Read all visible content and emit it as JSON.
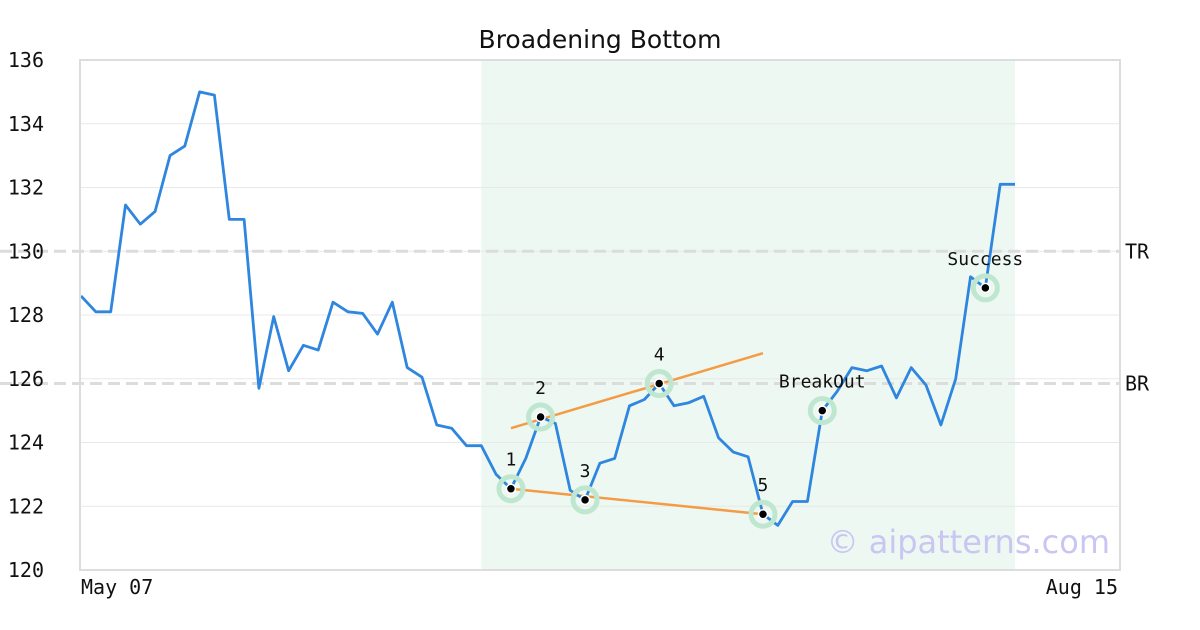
{
  "chart_data": {
    "type": "line",
    "title": "Broadening Bottom",
    "ylim": [
      120,
      136
    ],
    "yticks": [
      120,
      122,
      124,
      126,
      128,
      130,
      132,
      134,
      136
    ],
    "xtick_labels": [
      "May 07",
      "Aug 15"
    ],
    "grid": true,
    "series": [
      {
        "values": [
          128.6,
          128.1,
          128.1,
          131.45,
          130.85,
          131.25,
          133.0,
          133.3,
          135.0,
          134.9,
          131.0,
          131.0,
          125.7,
          127.95,
          126.25,
          127.05,
          126.9,
          128.4,
          128.1,
          128.05,
          127.4,
          128.4,
          126.35,
          126.05,
          124.55,
          124.45,
          123.9,
          123.9,
          123.0,
          122.55,
          123.5,
          124.8,
          124.6,
          122.5,
          122.2,
          123.35,
          123.5,
          125.15,
          125.35,
          125.85,
          125.15,
          125.25,
          125.45,
          124.15,
          123.7,
          123.55,
          121.75,
          121.4,
          122.15,
          122.15,
          125.0,
          125.6,
          126.35,
          126.25,
          126.4,
          125.4,
          126.35,
          125.8,
          124.55,
          126.0,
          129.2,
          128.85,
          132.1,
          132.1
        ],
        "color": "#2e86de"
      }
    ],
    "highlight_region": {
      "start_index": 27,
      "end_index": 63,
      "color": "#eef8f3"
    },
    "levels": [
      {
        "label": "TR",
        "value": 130.0
      },
      {
        "label": "BR",
        "value": 125.85
      }
    ],
    "pattern_points": [
      {
        "label": "1",
        "index": 29,
        "value": 122.55
      },
      {
        "label": "2",
        "index": 31,
        "value": 124.8
      },
      {
        "label": "3",
        "index": 34,
        "value": 122.2
      },
      {
        "label": "4",
        "index": 39,
        "value": 125.85
      },
      {
        "label": "5",
        "index": 46,
        "value": 121.75
      },
      {
        "label": "BreakOut",
        "index": 50,
        "value": 125.0
      },
      {
        "label": "Success",
        "index": 61,
        "value": 128.85
      }
    ],
    "trendlines": [
      {
        "name": "upper",
        "from": {
          "index": 29,
          "value": 124.45
        },
        "to": {
          "index": 46,
          "value": 126.8
        },
        "color": "#f39c45"
      },
      {
        "name": "lower",
        "from": {
          "index": 29,
          "value": 122.55
        },
        "to": {
          "index": 46,
          "value": 121.75
        },
        "color": "#f39c45"
      }
    ],
    "watermark": "© aipatterns.com"
  }
}
